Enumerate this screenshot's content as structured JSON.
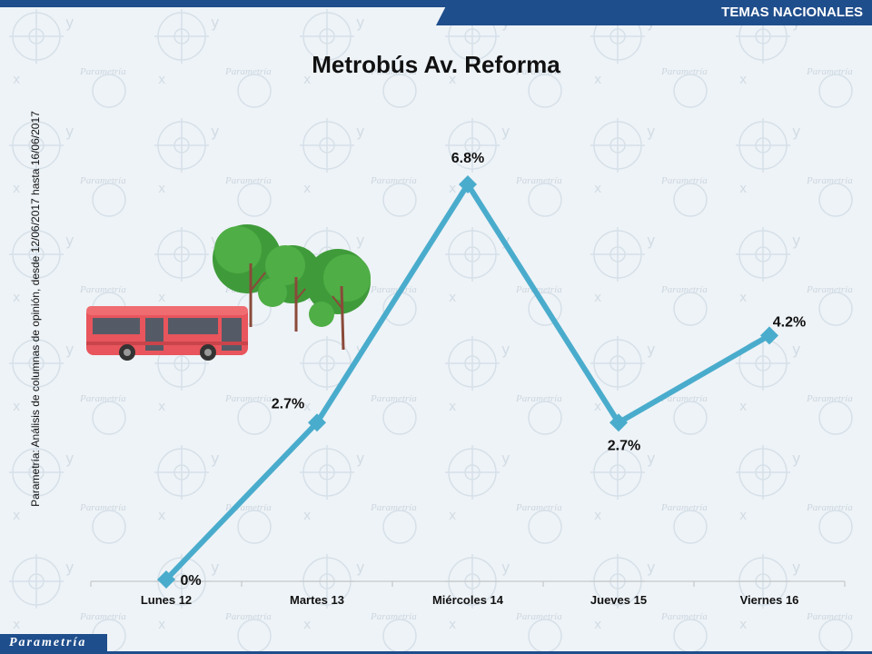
{
  "header": {
    "section": "TEMAS NACIONALES"
  },
  "source_note": "Parametría: Análisis de columnas de opinión, desde 12/06/2017 hasta 16/06/2017",
  "footer": {
    "logo_text": "Parametría"
  },
  "colors": {
    "line": "#4aaccc",
    "brand": "#1f4e8c"
  },
  "chart_data": {
    "type": "line",
    "title": "Metrobús Av. Reforma",
    "categories": [
      "Lunes 12",
      "Martes 13",
      "Miércoles 14",
      "Jueves 15",
      "Viernes 16"
    ],
    "series": [
      {
        "values": [
          0,
          2.7,
          6.8,
          2.7,
          4.2
        ],
        "labels": [
          "0%",
          "2.7%",
          "6.8%",
          "2.7%",
          "4.2%"
        ]
      }
    ],
    "xlabel": "",
    "ylabel": "",
    "ylim": [
      0,
      6.8
    ],
    "grid": false,
    "legend": "none"
  }
}
